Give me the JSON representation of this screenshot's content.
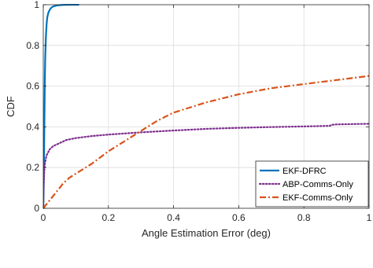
{
  "chart_data": {
    "type": "line",
    "title": "",
    "xlabel": "Angle Estimation Error (deg)",
    "ylabel": "CDF",
    "xlim": [
      0,
      1
    ],
    "ylim": [
      0,
      1
    ],
    "x_ticks": [
      0,
      0.2,
      0.4,
      0.6,
      0.8,
      1
    ],
    "y_ticks": [
      0,
      0.2,
      0.4,
      0.6,
      0.8,
      1
    ],
    "x_tick_labels": [
      "0",
      "0.2",
      "0.4",
      "0.6",
      "0.8",
      "1"
    ],
    "y_tick_labels": [
      "0",
      "0.2",
      "0.4",
      "0.6",
      "0.8",
      "1"
    ],
    "grid": true,
    "legend_position": "bottom-right",
    "series": [
      {
        "name": "EKF-DFRC",
        "color": "#0072BD",
        "style": "solid",
        "x": [
          0,
          0.001,
          0.002,
          0.003,
          0.004,
          0.005,
          0.006,
          0.008,
          0.01,
          0.012,
          0.015,
          0.02,
          0.025,
          0.03,
          0.04,
          0.05,
          0.06,
          0.08,
          0.1,
          0.11
        ],
        "y": [
          0,
          0.08,
          0.2,
          0.36,
          0.52,
          0.65,
          0.74,
          0.84,
          0.9,
          0.935,
          0.958,
          0.976,
          0.986,
          0.991,
          0.996,
          0.998,
          0.999,
          1.0,
          1.0,
          1.0
        ]
      },
      {
        "name": "ABP-Comms-Only",
        "color": "#7E2F8E",
        "style": "dotted",
        "x": [
          0,
          0.001,
          0.003,
          0.005,
          0.01,
          0.02,
          0.03,
          0.05,
          0.07,
          0.1,
          0.15,
          0.2,
          0.3,
          0.4,
          0.5,
          0.6,
          0.7,
          0.8,
          0.88,
          0.885,
          0.9,
          1.0
        ],
        "y": [
          0,
          0.1,
          0.18,
          0.22,
          0.26,
          0.29,
          0.305,
          0.32,
          0.335,
          0.345,
          0.355,
          0.362,
          0.373,
          0.382,
          0.39,
          0.395,
          0.399,
          0.402,
          0.405,
          0.41,
          0.412,
          0.415
        ]
      },
      {
        "name": "EKF-Comms-Only",
        "color": "#D95319",
        "style": "dashdot",
        "x": [
          0,
          0.01,
          0.02,
          0.04,
          0.06,
          0.08,
          0.1,
          0.15,
          0.2,
          0.25,
          0.3,
          0.35,
          0.4,
          0.5,
          0.6,
          0.7,
          0.8,
          0.9,
          1.0
        ],
        "y": [
          0,
          0.02,
          0.04,
          0.08,
          0.12,
          0.15,
          0.17,
          0.22,
          0.28,
          0.33,
          0.38,
          0.43,
          0.47,
          0.52,
          0.56,
          0.59,
          0.61,
          0.63,
          0.65
        ]
      }
    ]
  }
}
